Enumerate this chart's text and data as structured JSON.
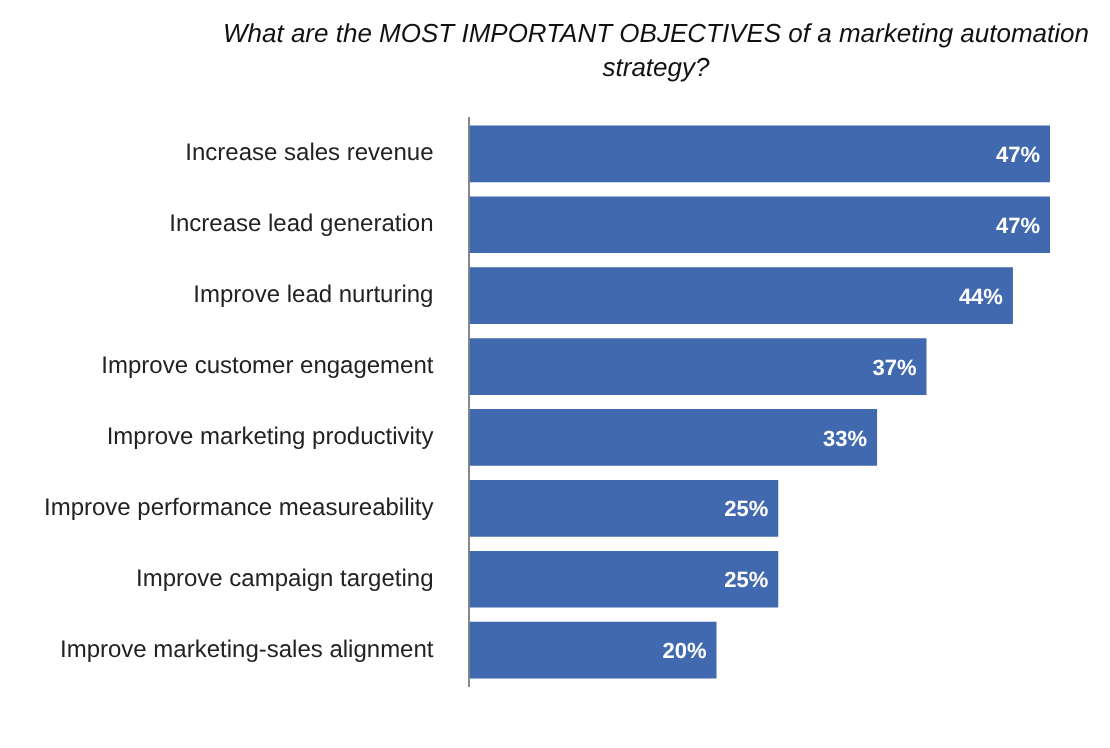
{
  "chart_data": {
    "type": "bar",
    "orientation": "horizontal",
    "title": "What are the MOST IMPORTANT OBJECTIVES of a marketing automation strategy?",
    "categories": [
      "Increase sales revenue",
      "Increase lead generation",
      "Improve lead nurturing",
      "Improve customer engagement",
      "Improve marketing productivity",
      "Improve performance measureability",
      "Improve campaign targeting",
      "Improve marketing-sales alignment"
    ],
    "values": [
      47,
      47,
      44,
      37,
      33,
      25,
      25,
      20
    ],
    "value_labels": [
      "47%",
      "47%",
      "44%",
      "37%",
      "33%",
      "25%",
      "25%",
      "20%"
    ],
    "color": "#4169b0",
    "grid": false,
    "legend": false
  }
}
